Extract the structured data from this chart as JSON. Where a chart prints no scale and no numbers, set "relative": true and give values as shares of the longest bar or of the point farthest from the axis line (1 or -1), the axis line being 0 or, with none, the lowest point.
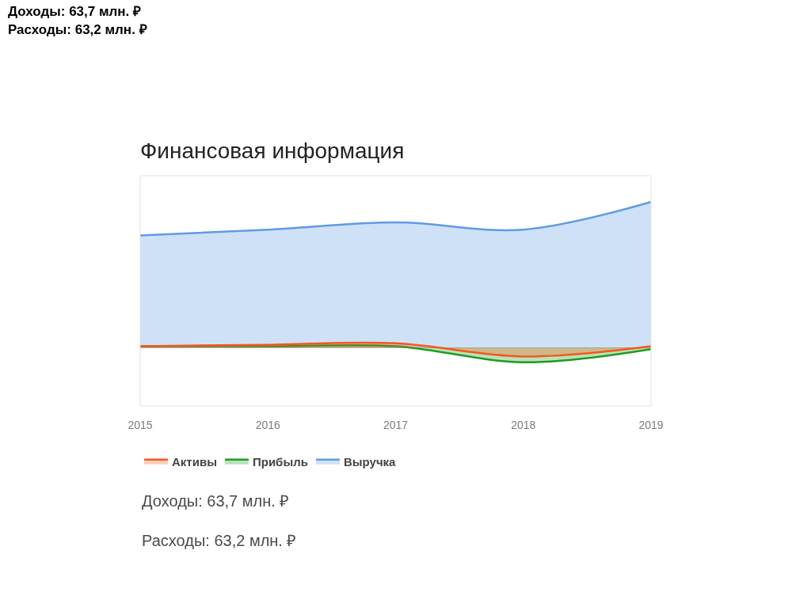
{
  "chart_data": {
    "type": "area",
    "title": "Финансовая информация",
    "categories": [
      "2015",
      "2016",
      "2017",
      "2018",
      "2019"
    ],
    "relative": true,
    "series": [
      {
        "name": "Активы",
        "color": "#f4581e",
        "values": [
          0.01,
          0.02,
          0.03,
          -0.06,
          0.01
        ]
      },
      {
        "name": "Прибыль",
        "color": "#1f9b1f",
        "values": [
          0.01,
          0.01,
          0.01,
          -0.1,
          -0.01
        ]
      },
      {
        "name": "Выручка",
        "color": "#5f9be3",
        "values": [
          0.77,
          0.81,
          0.86,
          0.81,
          1.0
        ]
      }
    ],
    "legend": "bottom",
    "annotations": [
      "Доходы: 63,7 млн. ₽",
      "Расходы: 63,2 млн. ₽",
      "Доходы: 63,7 млн. ₽",
      "Расходы: 63,2 млн. ₽"
    ]
  }
}
